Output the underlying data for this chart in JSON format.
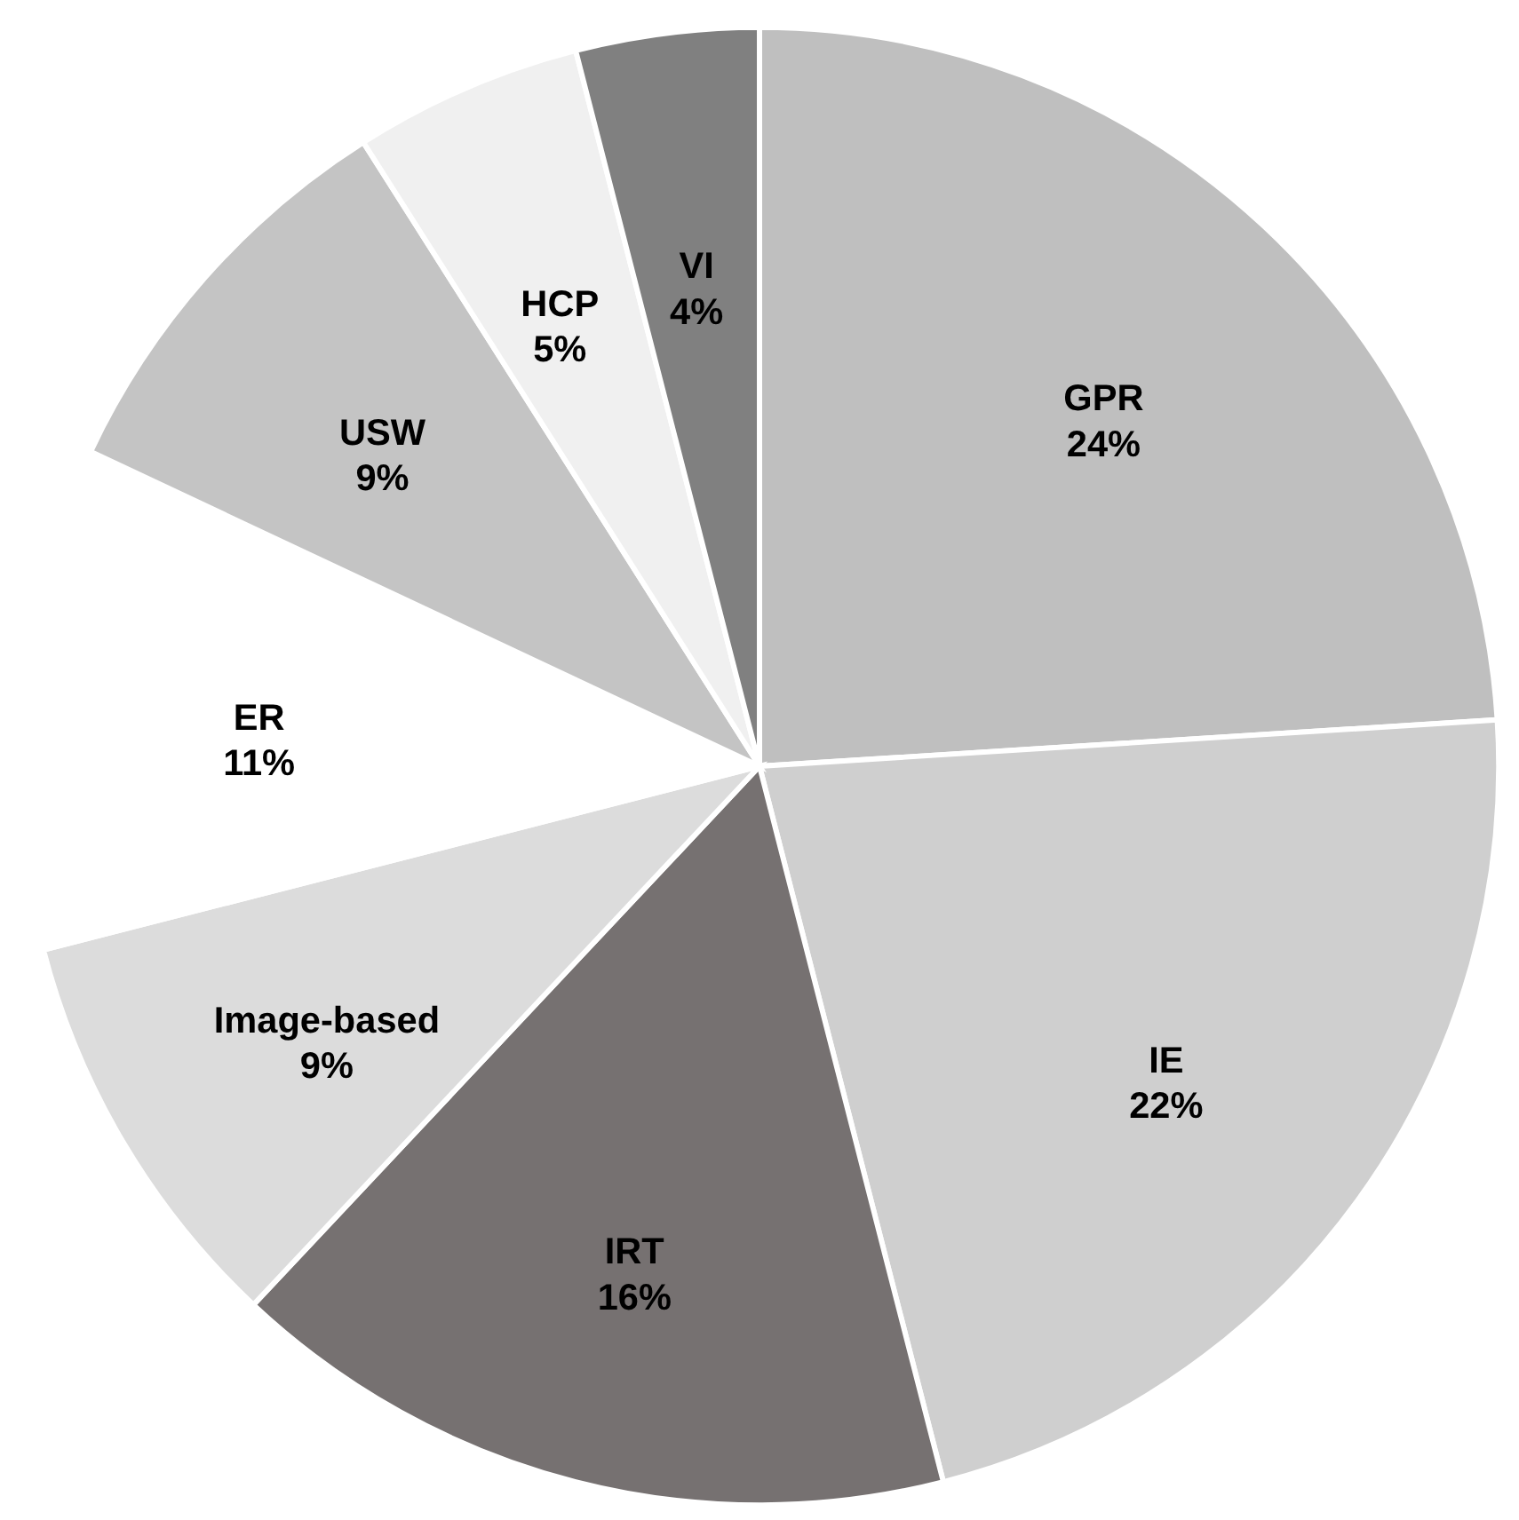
{
  "chart_data": {
    "type": "pie",
    "categories": [
      "GPR",
      "IE",
      "IRT",
      "Image-based",
      "ER",
      "USW",
      "HCP",
      "VI"
    ],
    "values": [
      24,
      22,
      16,
      9,
      11,
      9,
      5,
      4
    ],
    "value_labels": [
      "24%",
      "22%",
      "16%",
      "9%",
      "11%",
      "9%",
      "5%",
      "4%"
    ],
    "colors": [
      "#bfbfbf",
      "#cfcfcf",
      "#767171",
      "#dcdcdc",
      "#ffffff",
      "#c4c4c4",
      "#f0f0f0",
      "#808080"
    ],
    "legend": false
  }
}
